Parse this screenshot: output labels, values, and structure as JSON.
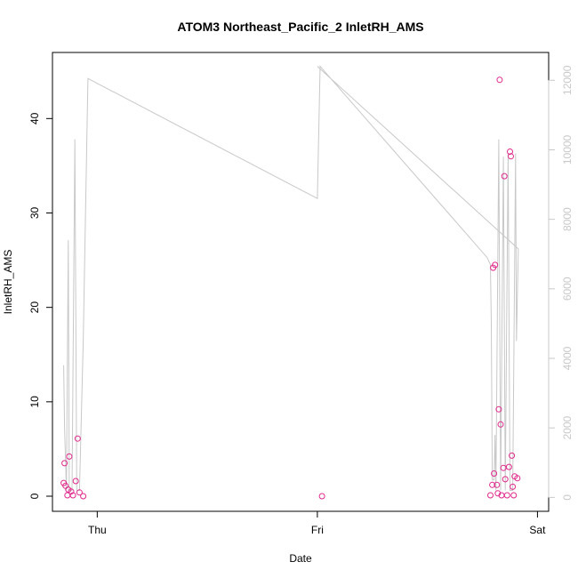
{
  "chart_data": {
    "type": "scatter",
    "title": "ATOM3 Northeast_Pacific_2 InletRH_AMS",
    "xlabel": "Date",
    "ylabel": "InletRH_AMS",
    "grid": false,
    "legend": "none",
    "colors": {
      "points": "#e0288c",
      "line": "#c8c8c8",
      "axis": "#000000",
      "right_axis": "#c8c8c8"
    },
    "x_axis": {
      "ticks": [
        {
          "label": "Thu",
          "value": 1.0
        },
        {
          "label": "Fri",
          "value": 2.0
        },
        {
          "label": "Sat",
          "value": 3.0
        }
      ],
      "xlim": [
        0.7966,
        3.0508
      ]
    },
    "y_axis_left": {
      "label": "InletRH_AMS",
      "ticks": [
        0,
        10,
        20,
        30,
        40
      ],
      "ylim": [
        -1.6,
        47.0
      ]
    },
    "y_axis_right": {
      "ticks": [
        0,
        2000,
        4000,
        6000,
        8000,
        10000,
        12000
      ],
      "ylim": [
        -400,
        12800
      ]
    },
    "series": [
      {
        "type": "scatter",
        "axis": "left",
        "points": [
          {
            "x": 0.8475,
            "y": 1.4
          },
          {
            "x": 0.8517,
            "y": 3.5
          },
          {
            "x": 0.8559,
            "y": 1.1
          },
          {
            "x": 0.8644,
            "y": 0.1
          },
          {
            "x": 0.8686,
            "y": 0.7
          },
          {
            "x": 0.8729,
            "y": 4.2
          },
          {
            "x": 0.8814,
            "y": 0.5
          },
          {
            "x": 0.8898,
            "y": 0.1
          },
          {
            "x": 0.9025,
            "y": 1.6
          },
          {
            "x": 0.911,
            "y": 6.1
          },
          {
            "x": 0.9195,
            "y": 0.4
          },
          {
            "x": 0.9364,
            "y": 0.0
          },
          {
            "x": 2.0212,
            "y": 0.0
          },
          {
            "x": 2.786,
            "y": 0.1
          },
          {
            "x": 2.7945,
            "y": 1.2
          },
          {
            "x": 2.7987,
            "y": 24.2
          },
          {
            "x": 2.8029,
            "y": 2.4
          },
          {
            "x": 2.8072,
            "y": 24.5
          },
          {
            "x": 2.8156,
            "y": 1.2
          },
          {
            "x": 2.8199,
            "y": 0.3
          },
          {
            "x": 2.8241,
            "y": 9.2
          },
          {
            "x": 2.8283,
            "y": 44.1
          },
          {
            "x": 2.8326,
            "y": 7.6
          },
          {
            "x": 2.8368,
            "y": 0.1
          },
          {
            "x": 2.8453,
            "y": 3.0
          },
          {
            "x": 2.8495,
            "y": 33.9
          },
          {
            "x": 2.8538,
            "y": 1.8
          },
          {
            "x": 2.8622,
            "y": 0.1
          },
          {
            "x": 2.8707,
            "y": 3.1
          },
          {
            "x": 2.875,
            "y": 36.5
          },
          {
            "x": 2.8792,
            "y": 36.0
          },
          {
            "x": 2.8834,
            "y": 4.3
          },
          {
            "x": 2.8877,
            "y": 1.0
          },
          {
            "x": 2.8919,
            "y": 0.1
          },
          {
            "x": 2.8961,
            "y": 2.1
          },
          {
            "x": 2.9088,
            "y": 1.9
          }
        ]
      },
      {
        "type": "line",
        "axis": "right",
        "points": [
          {
            "x": 0.8475,
            "y": 3800
          },
          {
            "x": 0.8517,
            "y": 2000
          },
          {
            "x": 0.8602,
            "y": 200
          },
          {
            "x": 0.8686,
            "y": 7400
          },
          {
            "x": 0.8729,
            "y": 200
          },
          {
            "x": 0.8856,
            "y": 200
          },
          {
            "x": 0.8983,
            "y": 10300
          },
          {
            "x": 0.9068,
            "y": 200
          },
          {
            "x": 0.9195,
            "y": 200
          },
          {
            "x": 0.9364,
            "y": 4500
          },
          {
            "x": 0.9576,
            "y": 12050
          },
          {
            "x": 2.0,
            "y": 8600
          },
          {
            "x": 2.0127,
            "y": 12400
          },
          {
            "x": 2.7712,
            "y": 6900
          },
          {
            "x": 2.786,
            "y": 6700
          },
          {
            "x": 2.7903,
            "y": 5000
          },
          {
            "x": 2.7945,
            "y": 500
          },
          {
            "x": 2.8029,
            "y": 500
          },
          {
            "x": 2.8072,
            "y": 1800
          },
          {
            "x": 2.8114,
            "y": 200
          },
          {
            "x": 2.8241,
            "y": 10300
          },
          {
            "x": 2.8326,
            "y": 200
          },
          {
            "x": 2.8453,
            "y": 9800
          },
          {
            "x": 2.8538,
            "y": 200
          },
          {
            "x": 2.8665,
            "y": 9900
          },
          {
            "x": 2.875,
            "y": 200
          },
          {
            "x": 2.8877,
            "y": 200
          },
          {
            "x": 2.9004,
            "y": 9900
          },
          {
            "x": 2.9046,
            "y": 4500
          },
          {
            "x": 2.9131,
            "y": 7150
          },
          {
            "x": 2.9131,
            "y": 7150
          },
          {
            "x": 2.0,
            "y": 12400
          }
        ]
      }
    ]
  }
}
